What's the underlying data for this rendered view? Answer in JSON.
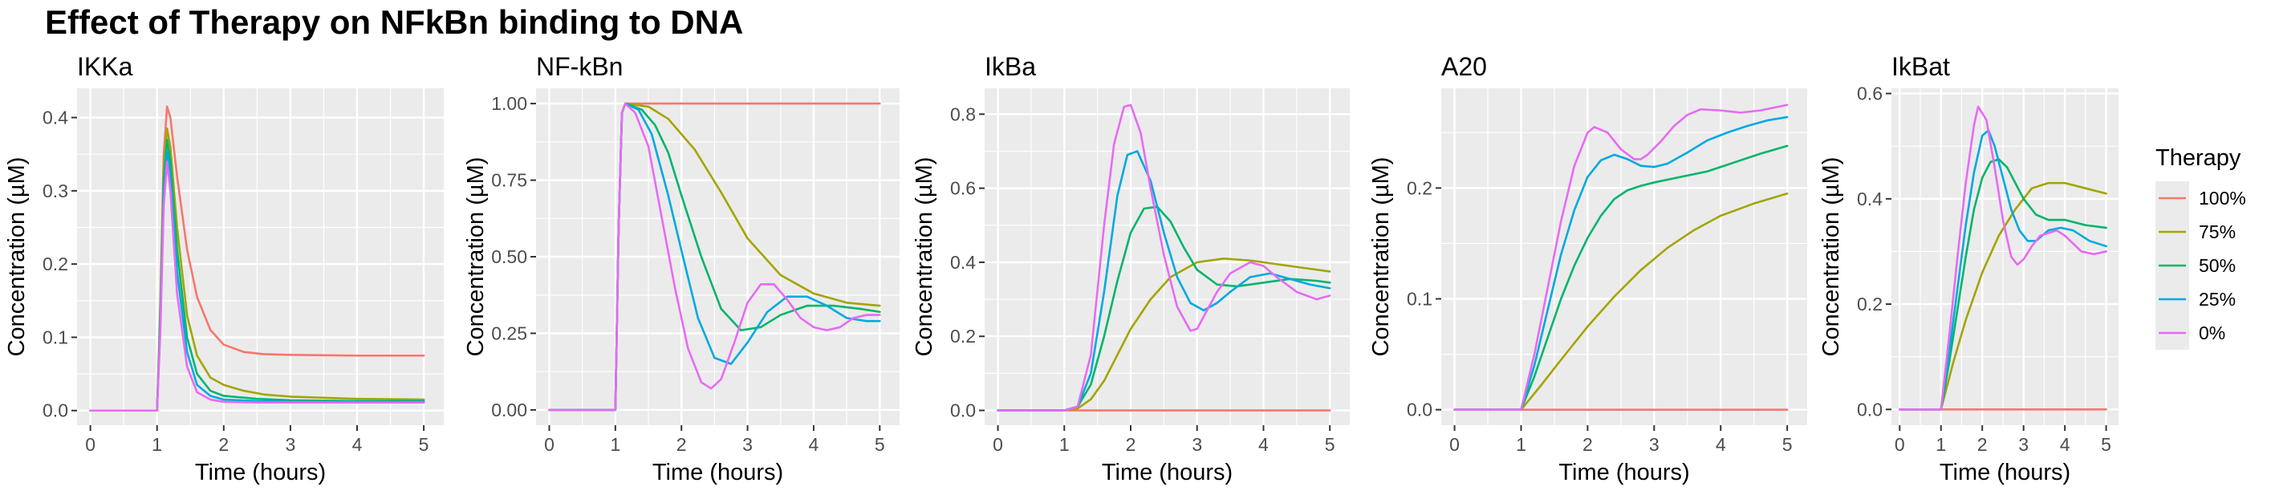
{
  "figure": {
    "title": "Effect of Therapy on NFkBn binding to DNA"
  },
  "legend": {
    "title": "Therapy",
    "entries": [
      {
        "label": "100%",
        "color": "#F8766D"
      },
      {
        "label": "75%",
        "color": "#A3A500"
      },
      {
        "label": "50%",
        "color": "#00B56B"
      },
      {
        "label": "25%",
        "color": "#00A9E0"
      },
      {
        "label": "0%",
        "color": "#E76BF3"
      }
    ]
  },
  "chart_data": [
    {
      "type": "line",
      "title": "IKKa",
      "xlabel": "Time (hours)",
      "ylabel": "Concentration (µM)",
      "xlim": [
        -0.2,
        5.3
      ],
      "ylim": [
        -0.02,
        0.44
      ],
      "xticks": [
        0,
        1,
        2,
        3,
        4,
        5
      ],
      "yticks": [
        0.0,
        0.1,
        0.2,
        0.3,
        0.4
      ],
      "ytick_labels": [
        "0.0",
        "0.1",
        "0.2",
        "0.3",
        "0.4"
      ],
      "series": [
        {
          "name": "100%",
          "x": [
            0,
            1.0,
            1.05,
            1.1,
            1.15,
            1.2,
            1.3,
            1.45,
            1.6,
            1.8,
            2.0,
            2.3,
            2.6,
            3.0,
            4.0,
            5.0
          ],
          "y": [
            0,
            0,
            0.15,
            0.35,
            0.415,
            0.4,
            0.32,
            0.22,
            0.155,
            0.11,
            0.09,
            0.08,
            0.077,
            0.076,
            0.075,
            0.075
          ]
        },
        {
          "name": "75%",
          "x": [
            0,
            1.0,
            1.05,
            1.1,
            1.15,
            1.2,
            1.3,
            1.45,
            1.6,
            1.8,
            2.0,
            2.3,
            2.6,
            3.0,
            4.0,
            5.0
          ],
          "y": [
            0,
            0,
            0.14,
            0.33,
            0.385,
            0.36,
            0.25,
            0.13,
            0.075,
            0.045,
            0.035,
            0.027,
            0.022,
            0.019,
            0.016,
            0.015
          ]
        },
        {
          "name": "50%",
          "x": [
            0,
            1.0,
            1.05,
            1.1,
            1.15,
            1.2,
            1.3,
            1.45,
            1.6,
            1.8,
            2.0,
            2.5,
            3.0,
            4.0,
            5.0
          ],
          "y": [
            0,
            0,
            0.13,
            0.31,
            0.37,
            0.34,
            0.22,
            0.1,
            0.05,
            0.027,
            0.02,
            0.016,
            0.014,
            0.013,
            0.013
          ]
        },
        {
          "name": "25%",
          "x": [
            0,
            1.0,
            1.05,
            1.1,
            1.15,
            1.2,
            1.3,
            1.45,
            1.6,
            1.8,
            2.0,
            2.5,
            3.0,
            4.0,
            5.0
          ],
          "y": [
            0,
            0,
            0.12,
            0.3,
            0.355,
            0.32,
            0.19,
            0.08,
            0.035,
            0.02,
            0.015,
            0.013,
            0.012,
            0.012,
            0.012
          ]
        },
        {
          "name": "0%",
          "x": [
            0,
            1.0,
            1.05,
            1.1,
            1.15,
            1.2,
            1.3,
            1.45,
            1.6,
            1.8,
            2.0,
            2.5,
            3.0,
            4.0,
            5.0
          ],
          "y": [
            0,
            0,
            0.11,
            0.28,
            0.34,
            0.3,
            0.16,
            0.06,
            0.025,
            0.015,
            0.012,
            0.011,
            0.011,
            0.011,
            0.011
          ]
        }
      ]
    },
    {
      "type": "line",
      "title": "NF-kBn",
      "xlabel": "Time (hours)",
      "ylabel": "Concentration (µM)",
      "xlim": [
        -0.2,
        5.3
      ],
      "ylim": [
        -0.05,
        1.05
      ],
      "xticks": [
        0,
        1,
        2,
        3,
        4,
        5
      ],
      "yticks": [
        0.0,
        0.25,
        0.5,
        0.75,
        1.0
      ],
      "ytick_labels": [
        "0.00",
        "0.25",
        "0.50",
        "0.75",
        "1.00"
      ],
      "series": [
        {
          "name": "100%",
          "x": [
            0,
            1.0,
            1.05,
            1.1,
            1.15,
            5.0
          ],
          "y": [
            0,
            0,
            0.6,
            0.97,
            1.0,
            1.0
          ]
        },
        {
          "name": "75%",
          "x": [
            0,
            1.0,
            1.05,
            1.1,
            1.15,
            1.5,
            1.8,
            2.2,
            2.6,
            3.0,
            3.5,
            4.0,
            4.5,
            5.0
          ],
          "y": [
            0,
            0,
            0.6,
            0.97,
            1.0,
            0.99,
            0.95,
            0.85,
            0.71,
            0.56,
            0.44,
            0.38,
            0.35,
            0.34
          ]
        },
        {
          "name": "50%",
          "x": [
            0,
            1.0,
            1.05,
            1.1,
            1.15,
            1.4,
            1.6,
            1.8,
            2.0,
            2.3,
            2.6,
            2.9,
            3.2,
            3.5,
            3.9,
            4.3,
            4.7,
            5.0
          ],
          "y": [
            0,
            0,
            0.6,
            0.97,
            1.0,
            0.98,
            0.93,
            0.84,
            0.7,
            0.5,
            0.33,
            0.26,
            0.27,
            0.31,
            0.34,
            0.34,
            0.33,
            0.32
          ]
        },
        {
          "name": "25%",
          "x": [
            0,
            1.0,
            1.05,
            1.1,
            1.15,
            1.35,
            1.55,
            1.8,
            2.0,
            2.25,
            2.5,
            2.75,
            3.0,
            3.3,
            3.6,
            3.9,
            4.2,
            4.5,
            4.8,
            5.0
          ],
          "y": [
            0,
            0,
            0.6,
            0.97,
            1.0,
            0.98,
            0.9,
            0.7,
            0.52,
            0.3,
            0.17,
            0.15,
            0.22,
            0.32,
            0.37,
            0.37,
            0.34,
            0.3,
            0.29,
            0.29
          ]
        },
        {
          "name": "0%",
          "x": [
            0,
            1.0,
            1.05,
            1.1,
            1.15,
            1.3,
            1.5,
            1.7,
            1.9,
            2.1,
            2.3,
            2.45,
            2.6,
            2.8,
            3.0,
            3.2,
            3.4,
            3.6,
            3.8,
            4.0,
            4.2,
            4.4,
            4.6,
            4.8,
            5.0
          ],
          "y": [
            0,
            0,
            0.6,
            0.97,
            1.0,
            0.97,
            0.86,
            0.63,
            0.4,
            0.2,
            0.09,
            0.07,
            0.1,
            0.22,
            0.35,
            0.41,
            0.41,
            0.36,
            0.3,
            0.27,
            0.26,
            0.27,
            0.3,
            0.31,
            0.31
          ]
        }
      ]
    },
    {
      "type": "line",
      "title": "IkBa",
      "xlabel": "Time (hours)",
      "ylabel": "Concentration (µM)",
      "xlim": [
        -0.2,
        5.3
      ],
      "ylim": [
        -0.04,
        0.87
      ],
      "xticks": [
        0,
        1,
        2,
        3,
        4,
        5
      ],
      "yticks": [
        0.0,
        0.2,
        0.4,
        0.6,
        0.8
      ],
      "ytick_labels": [
        "0.0",
        "0.2",
        "0.4",
        "0.6",
        "0.8"
      ],
      "series": [
        {
          "name": "100%",
          "x": [
            0,
            5.0
          ],
          "y": [
            0,
            0
          ]
        },
        {
          "name": "75%",
          "x": [
            0,
            1.0,
            1.2,
            1.4,
            1.6,
            1.8,
            2.0,
            2.3,
            2.6,
            3.0,
            3.4,
            3.8,
            4.2,
            4.6,
            5.0
          ],
          "y": [
            0,
            0,
            0.005,
            0.03,
            0.08,
            0.15,
            0.22,
            0.3,
            0.36,
            0.4,
            0.41,
            0.405,
            0.395,
            0.385,
            0.375
          ]
        },
        {
          "name": "50%",
          "x": [
            0,
            1.0,
            1.2,
            1.4,
            1.6,
            1.8,
            2.0,
            2.2,
            2.4,
            2.6,
            2.8,
            3.0,
            3.3,
            3.6,
            4.0,
            4.4,
            4.8,
            5.0
          ],
          "y": [
            0,
            0,
            0.01,
            0.07,
            0.2,
            0.35,
            0.48,
            0.545,
            0.55,
            0.51,
            0.44,
            0.38,
            0.34,
            0.335,
            0.345,
            0.355,
            0.35,
            0.345
          ]
        },
        {
          "name": "25%",
          "x": [
            0,
            1.0,
            1.2,
            1.4,
            1.6,
            1.8,
            1.95,
            2.1,
            2.3,
            2.5,
            2.7,
            2.9,
            3.1,
            3.3,
            3.5,
            3.8,
            4.1,
            4.4,
            4.7,
            5.0
          ],
          "y": [
            0,
            0,
            0.01,
            0.1,
            0.32,
            0.58,
            0.69,
            0.7,
            0.62,
            0.48,
            0.36,
            0.29,
            0.27,
            0.29,
            0.32,
            0.36,
            0.37,
            0.355,
            0.34,
            0.33
          ]
        },
        {
          "name": "0%",
          "x": [
            0,
            1.0,
            1.2,
            1.4,
            1.6,
            1.75,
            1.9,
            2.0,
            2.15,
            2.3,
            2.5,
            2.7,
            2.9,
            3.0,
            3.15,
            3.3,
            3.5,
            3.8,
            4.0,
            4.2,
            4.5,
            4.8,
            5.0
          ],
          "y": [
            0,
            0,
            0.01,
            0.15,
            0.5,
            0.72,
            0.82,
            0.825,
            0.75,
            0.6,
            0.42,
            0.28,
            0.215,
            0.22,
            0.27,
            0.32,
            0.37,
            0.4,
            0.39,
            0.36,
            0.32,
            0.3,
            0.31
          ]
        }
      ]
    },
    {
      "type": "line",
      "title": "A20",
      "xlabel": "Time (hours)",
      "ylabel": "Concentration (µM)",
      "xlim": [
        -0.2,
        5.3
      ],
      "ylim": [
        -0.014,
        0.29
      ],
      "xticks": [
        0,
        1,
        2,
        3,
        4,
        5
      ],
      "yticks": [
        0.0,
        0.1,
        0.2
      ],
      "ytick_labels": [
        "0.0",
        "0.1",
        "0.2"
      ],
      "series": [
        {
          "name": "100%",
          "x": [
            0,
            5.0
          ],
          "y": [
            0,
            0
          ]
        },
        {
          "name": "75%",
          "x": [
            0,
            1.0,
            1.3,
            1.6,
            2.0,
            2.4,
            2.8,
            3.2,
            3.6,
            4.0,
            4.5,
            5.0
          ],
          "y": [
            0,
            0,
            0.022,
            0.045,
            0.075,
            0.102,
            0.126,
            0.146,
            0.162,
            0.175,
            0.186,
            0.195
          ]
        },
        {
          "name": "50%",
          "x": [
            0,
            1.0,
            1.2,
            1.4,
            1.6,
            1.8,
            2.0,
            2.2,
            2.4,
            2.6,
            2.8,
            3.0,
            3.4,
            3.8,
            4.2,
            4.6,
            5.0
          ],
          "y": [
            0,
            0,
            0.03,
            0.065,
            0.1,
            0.13,
            0.155,
            0.175,
            0.19,
            0.198,
            0.202,
            0.205,
            0.21,
            0.215,
            0.223,
            0.231,
            0.238
          ]
        },
        {
          "name": "25%",
          "x": [
            0,
            1.0,
            1.2,
            1.4,
            1.6,
            1.8,
            2.0,
            2.2,
            2.4,
            2.6,
            2.8,
            3.0,
            3.2,
            3.5,
            3.8,
            4.1,
            4.4,
            4.7,
            5.0
          ],
          "y": [
            0,
            0,
            0.04,
            0.09,
            0.14,
            0.18,
            0.21,
            0.225,
            0.23,
            0.226,
            0.22,
            0.219,
            0.222,
            0.232,
            0.243,
            0.25,
            0.256,
            0.261,
            0.264
          ]
        },
        {
          "name": "0%",
          "x": [
            0,
            1.0,
            1.2,
            1.4,
            1.6,
            1.8,
            2.0,
            2.1,
            2.3,
            2.5,
            2.7,
            2.8,
            2.9,
            3.1,
            3.3,
            3.5,
            3.7,
            4.0,
            4.3,
            4.6,
            5.0
          ],
          "y": [
            0,
            0,
            0.05,
            0.11,
            0.17,
            0.22,
            0.25,
            0.255,
            0.25,
            0.235,
            0.226,
            0.226,
            0.23,
            0.242,
            0.256,
            0.266,
            0.271,
            0.27,
            0.268,
            0.27,
            0.275
          ]
        }
      ]
    },
    {
      "type": "line",
      "title": "IkBat",
      "xlabel": "Time (hours)",
      "ylabel": "Concentration (µM)",
      "xlim": [
        -0.2,
        5.3
      ],
      "ylim": [
        -0.03,
        0.61
      ],
      "xticks": [
        0,
        1,
        2,
        3,
        4,
        5
      ],
      "yticks": [
        0.0,
        0.2,
        0.4,
        0.6
      ],
      "ytick_labels": [
        "0.0",
        "0.2",
        "0.4",
        "0.6"
      ],
      "series": [
        {
          "name": "100%",
          "x": [
            0,
            5.0
          ],
          "y": [
            0,
            0
          ]
        },
        {
          "name": "75%",
          "x": [
            0,
            1.0,
            1.3,
            1.6,
            2.0,
            2.4,
            2.8,
            3.2,
            3.6,
            4.0,
            4.5,
            5.0
          ],
          "y": [
            0,
            0,
            0.09,
            0.17,
            0.26,
            0.33,
            0.38,
            0.42,
            0.43,
            0.43,
            0.42,
            0.41
          ]
        },
        {
          "name": "50%",
          "x": [
            0,
            1.0,
            1.2,
            1.4,
            1.6,
            1.8,
            2.0,
            2.2,
            2.4,
            2.6,
            2.8,
            3.0,
            3.3,
            3.6,
            4.0,
            4.5,
            5.0
          ],
          "y": [
            0,
            0,
            0.09,
            0.19,
            0.29,
            0.38,
            0.44,
            0.47,
            0.475,
            0.46,
            0.43,
            0.4,
            0.37,
            0.36,
            0.36,
            0.35,
            0.345
          ]
        },
        {
          "name": "25%",
          "x": [
            0,
            1.0,
            1.2,
            1.4,
            1.6,
            1.8,
            2.0,
            2.15,
            2.3,
            2.5,
            2.7,
            2.9,
            3.1,
            3.3,
            3.6,
            3.9,
            4.2,
            4.6,
            5.0
          ],
          "y": [
            0,
            0,
            0.11,
            0.23,
            0.35,
            0.45,
            0.52,
            0.53,
            0.5,
            0.44,
            0.38,
            0.34,
            0.32,
            0.32,
            0.34,
            0.345,
            0.34,
            0.32,
            0.31
          ]
        },
        {
          "name": "0%",
          "x": [
            0,
            1.0,
            1.2,
            1.4,
            1.6,
            1.8,
            1.9,
            2.1,
            2.3,
            2.5,
            2.7,
            2.85,
            3.0,
            3.2,
            3.4,
            3.6,
            3.8,
            4.0,
            4.2,
            4.4,
            4.7,
            5.0
          ],
          "y": [
            0,
            0,
            0.14,
            0.29,
            0.43,
            0.54,
            0.575,
            0.55,
            0.46,
            0.36,
            0.29,
            0.275,
            0.285,
            0.31,
            0.33,
            0.335,
            0.34,
            0.33,
            0.315,
            0.3,
            0.295,
            0.3
          ]
        }
      ]
    }
  ]
}
